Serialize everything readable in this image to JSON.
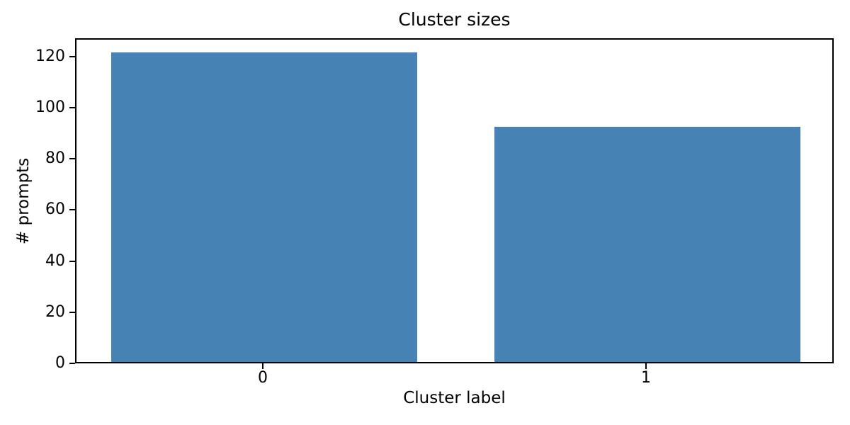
{
  "chart_data": {
    "type": "bar",
    "title": "Cluster sizes",
    "xlabel": "Cluster label",
    "ylabel": "# prompts",
    "categories": [
      "0",
      "1"
    ],
    "x": [
      0,
      1
    ],
    "values": [
      121,
      92
    ],
    "series_name": "cluster_size",
    "bar_color": "#4682B4",
    "bar_width": 0.8,
    "xlim": [
      -0.49,
      1.49
    ],
    "ylim": [
      0,
      127.05
    ],
    "yticks": [
      0,
      20,
      40,
      60,
      80,
      100,
      120
    ],
    "grid": false,
    "legend": "none",
    "background_color": "#ffffff",
    "text_color": "#000000",
    "axis_color": "#000000"
  }
}
